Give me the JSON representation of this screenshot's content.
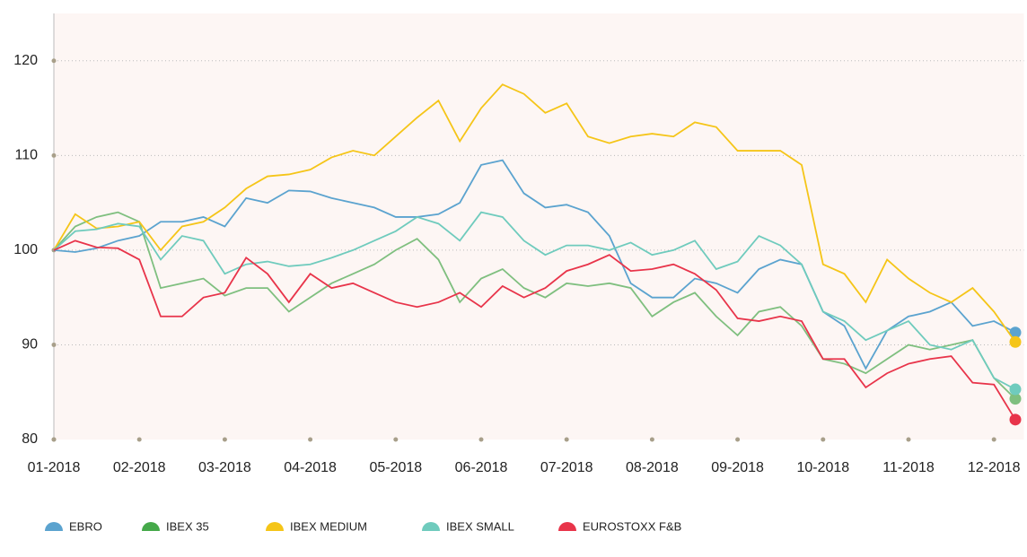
{
  "chart_data": {
    "type": "line",
    "x": [
      0,
      0.25,
      0.5,
      0.75,
      1,
      1.25,
      1.5,
      1.75,
      2,
      2.25,
      2.5,
      2.75,
      3,
      3.25,
      3.5,
      3.75,
      4,
      4.25,
      4.5,
      4.75,
      5,
      5.25,
      5.5,
      5.75,
      6,
      6.25,
      6.5,
      6.75,
      7,
      7.25,
      7.5,
      7.75,
      8,
      8.25,
      8.5,
      8.75,
      9,
      9.25,
      9.5,
      9.75,
      10,
      10.25,
      10.5,
      10.75,
      11,
      11.25
    ],
    "series": [
      {
        "name": "EBRO",
        "color": "#5ba3cf",
        "values": [
          100,
          99.8,
          100.2,
          101,
          101.5,
          103,
          103,
          103.5,
          102.5,
          105.5,
          105,
          106.3,
          106.2,
          105.5,
          105,
          104.5,
          103.5,
          103.5,
          103.8,
          105,
          109,
          109.5,
          106,
          104.5,
          104.8,
          104,
          101.5,
          96.5,
          95,
          95,
          97,
          96.5,
          95.5,
          98,
          99,
          98.5,
          93.5,
          92,
          87.5,
          91.5,
          93,
          93.5,
          94.5,
          92,
          92.5,
          91.3
        ]
      },
      {
        "name": "IBEX 35",
        "color": "#7fbf7f",
        "values": [
          100,
          102.5,
          103.5,
          104,
          103,
          96,
          96.5,
          97,
          95.2,
          96,
          96,
          93.5,
          95,
          96.5,
          97.5,
          98.5,
          100,
          101.2,
          99,
          94.5,
          97,
          98,
          96,
          95,
          96.5,
          96.2,
          96.5,
          96,
          93,
          94.5,
          95.5,
          93,
          91,
          93.5,
          94,
          92,
          88.5,
          88,
          87,
          88.5,
          90,
          89.5,
          90,
          90.5,
          86.5,
          84.3
        ]
      },
      {
        "name": "IBEX MEDIUM",
        "color": "#f5c518",
        "values": [
          100,
          103.8,
          102.3,
          102.5,
          103,
          100,
          102.5,
          103,
          104.5,
          106.5,
          107.8,
          108,
          108.5,
          109.8,
          110.5,
          110,
          112,
          114,
          115.8,
          111.5,
          115,
          117.5,
          116.5,
          114.5,
          115.5,
          112,
          111.3,
          112,
          112.3,
          112,
          113.5,
          113,
          110.5,
          110.5,
          110.5,
          109,
          98.5,
          97.5,
          94.5,
          99,
          97,
          95.5,
          94.5,
          96,
          93.5,
          90.3
        ]
      },
      {
        "name": "IBEX SMALL",
        "color": "#6fcbbd",
        "values": [
          100,
          102,
          102.2,
          102.8,
          102.5,
          99,
          101.5,
          101,
          97.5,
          98.5,
          98.8,
          98.3,
          98.5,
          99.2,
          100,
          101,
          102,
          103.5,
          102.8,
          101,
          104,
          103.5,
          101,
          99.5,
          100.5,
          100.5,
          100,
          100.8,
          99.5,
          100,
          101,
          98,
          98.8,
          101.5,
          100.5,
          98.5,
          93.5,
          92.5,
          90.5,
          91.5,
          92.5,
          90,
          89.5,
          90.5,
          86.5,
          85.3
        ]
      },
      {
        "name": "EUROSTOXX F&B",
        "color": "#e8344a",
        "values": [
          100,
          101,
          100.3,
          100.2,
          99,
          93,
          93,
          95,
          95.5,
          99.2,
          97.5,
          94.5,
          97.5,
          96,
          96.5,
          95.5,
          94.5,
          94,
          94.5,
          95.5,
          94,
          96.2,
          95,
          96,
          97.8,
          98.5,
          99.5,
          97.8,
          98,
          98.5,
          97.5,
          95.8,
          92.8,
          92.5,
          93,
          92.5,
          88.5,
          88.5,
          85.5,
          87,
          88,
          88.5,
          88.8,
          86,
          85.8,
          82.1
        ]
      }
    ],
    "xlim": [
      0,
      11.35
    ],
    "xticks": [
      {
        "value": 0,
        "label": "01-2018"
      },
      {
        "value": 1,
        "label": "02-2018"
      },
      {
        "value": 2,
        "label": "03-2018"
      },
      {
        "value": 3,
        "label": "04-2018"
      },
      {
        "value": 4,
        "label": "05-2018"
      },
      {
        "value": 5,
        "label": "06-2018"
      },
      {
        "value": 6,
        "label": "07-2018"
      },
      {
        "value": 7,
        "label": "08-2018"
      },
      {
        "value": 8,
        "label": "09-2018"
      },
      {
        "value": 9,
        "label": "10-2018"
      },
      {
        "value": 10,
        "label": "11-2018"
      },
      {
        "value": 11,
        "label": "12-2018"
      }
    ],
    "ylim": [
      80,
      125
    ],
    "yticks": [
      80,
      90,
      100,
      110,
      120
    ],
    "grid": true
  }
}
